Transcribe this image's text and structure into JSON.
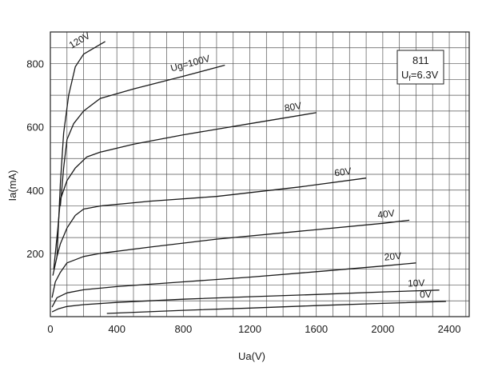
{
  "chart_data": {
    "type": "line",
    "title": "",
    "xlabel": "Ua(V)",
    "ylabel": "Ia(mA)",
    "xlim": [
      0,
      2520
    ],
    "ylim": [
      0,
      900
    ],
    "x_ticks": [
      0,
      400,
      800,
      1200,
      1600,
      2000,
      2400
    ],
    "x_tick_labels": [
      "0",
      "400",
      "800",
      "1200",
      "1600",
      "2000",
      "2400"
    ],
    "y_ticks": [
      200,
      400,
      600,
      800
    ],
    "y_tick_labels": [
      "200",
      "400",
      "600",
      "800"
    ],
    "grid": true,
    "info_box": {
      "tube": "811",
      "filament_prefix": "U",
      "filament_sub": "f",
      "filament_value": "=6.3V"
    },
    "series": [
      {
        "name": "120V",
        "label": "120V",
        "points": [
          [
            40,
            190
          ],
          [
            60,
            420
          ],
          [
            80,
            580
          ],
          [
            110,
            700
          ],
          [
            150,
            790
          ],
          [
            200,
            830
          ],
          [
            330,
            870
          ]
        ]
      },
      {
        "name": "Ug=100V",
        "label": "Ug=100V",
        "points": [
          [
            60,
            350
          ],
          [
            80,
            470
          ],
          [
            100,
            560
          ],
          [
            140,
            610
          ],
          [
            200,
            650
          ],
          [
            300,
            690
          ],
          [
            500,
            720
          ],
          [
            800,
            760
          ],
          [
            1050,
            795
          ]
        ]
      },
      {
        "name": "80V",
        "label": "80V",
        "points": [
          [
            20,
            150
          ],
          [
            45,
            280
          ],
          [
            60,
            370
          ],
          [
            100,
            430
          ],
          [
            150,
            470
          ],
          [
            220,
            505
          ],
          [
            300,
            520
          ],
          [
            500,
            545
          ],
          [
            800,
            575
          ],
          [
            1200,
            610
          ],
          [
            1600,
            645
          ]
        ]
      },
      {
        "name": "60V",
        "label": "60V",
        "points": [
          [
            15,
            130
          ],
          [
            40,
            190
          ],
          [
            60,
            230
          ],
          [
            100,
            280
          ],
          [
            150,
            320
          ],
          [
            200,
            340
          ],
          [
            300,
            350
          ],
          [
            600,
            365
          ],
          [
            1000,
            380
          ],
          [
            1500,
            410
          ],
          [
            1900,
            438
          ]
        ]
      },
      {
        "name": "40V",
        "label": "40V",
        "points": [
          [
            10,
            60
          ],
          [
            30,
            110
          ],
          [
            60,
            140
          ],
          [
            100,
            170
          ],
          [
            200,
            190
          ],
          [
            300,
            200
          ],
          [
            600,
            220
          ],
          [
            1000,
            245
          ],
          [
            1500,
            270
          ],
          [
            2000,
            295
          ],
          [
            2160,
            305
          ]
        ]
      },
      {
        "name": "20V",
        "label": "20V",
        "points": [
          [
            10,
            30
          ],
          [
            40,
            60
          ],
          [
            100,
            75
          ],
          [
            200,
            85
          ],
          [
            400,
            95
          ],
          [
            800,
            110
          ],
          [
            1200,
            125
          ],
          [
            1600,
            142
          ],
          [
            2000,
            160
          ],
          [
            2200,
            170
          ]
        ]
      },
      {
        "name": "10V",
        "label": "10V",
        "points": [
          [
            10,
            15
          ],
          [
            50,
            25
          ],
          [
            100,
            32
          ],
          [
            200,
            38
          ],
          [
            400,
            45
          ],
          [
            800,
            55
          ],
          [
            1200,
            63
          ],
          [
            1600,
            70
          ],
          [
            2000,
            78
          ],
          [
            2340,
            84
          ]
        ]
      },
      {
        "name": "0V",
        "label": "0V",
        "points": [
          [
            340,
            10
          ],
          [
            800,
            20
          ],
          [
            1200,
            27
          ],
          [
            1600,
            35
          ],
          [
            2000,
            42
          ],
          [
            2380,
            48
          ]
        ]
      }
    ]
  }
}
